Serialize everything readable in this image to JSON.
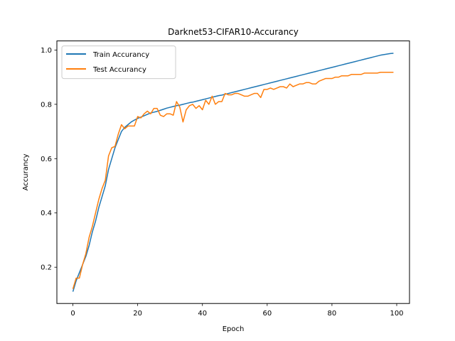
{
  "chart_data": {
    "type": "line",
    "title": "Darknet53-CIFAR10-Accurancy",
    "xlabel": "Epoch",
    "ylabel": "Accurancy",
    "xlim": [
      -4.95,
      103.95
    ],
    "ylim": [
      0.0665,
      1.0335
    ],
    "xticks": [
      0,
      20,
      40,
      60,
      80,
      100
    ],
    "yticks": [
      0.2,
      0.4,
      0.6,
      0.8,
      1.0
    ],
    "legend": "top-left",
    "grid": false,
    "series": [
      {
        "name": "Train Accurancy",
        "color": "#1f77b4",
        "values": [
          0.11,
          0.15,
          0.18,
          0.21,
          0.24,
          0.28,
          0.33,
          0.37,
          0.42,
          0.46,
          0.5,
          0.56,
          0.6,
          0.64,
          0.67,
          0.7,
          0.715,
          0.725,
          0.735,
          0.742,
          0.748,
          0.753,
          0.758,
          0.763,
          0.768,
          0.771,
          0.774,
          0.778,
          0.782,
          0.786,
          0.789,
          0.792,
          0.795,
          0.797,
          0.8,
          0.803,
          0.806,
          0.808,
          0.811,
          0.814,
          0.817,
          0.82,
          0.823,
          0.826,
          0.829,
          0.832,
          0.834,
          0.837,
          0.84,
          0.843,
          0.846,
          0.849,
          0.852,
          0.855,
          0.858,
          0.861,
          0.864,
          0.867,
          0.87,
          0.873,
          0.876,
          0.879,
          0.882,
          0.885,
          0.888,
          0.891,
          0.894,
          0.897,
          0.9,
          0.903,
          0.906,
          0.909,
          0.912,
          0.915,
          0.918,
          0.921,
          0.924,
          0.927,
          0.93,
          0.933,
          0.936,
          0.939,
          0.942,
          0.945,
          0.948,
          0.951,
          0.954,
          0.957,
          0.96,
          0.963,
          0.966,
          0.969,
          0.972,
          0.975,
          0.978,
          0.981,
          0.983,
          0.985,
          0.987,
          0.988
        ]
      },
      {
        "name": "Test Accurancy",
        "color": "#ff7f0e",
        "values": [
          0.12,
          0.16,
          0.16,
          0.21,
          0.25,
          0.31,
          0.35,
          0.4,
          0.45,
          0.49,
          0.52,
          0.61,
          0.64,
          0.645,
          0.69,
          0.725,
          0.71,
          0.72,
          0.72,
          0.72,
          0.755,
          0.75,
          0.765,
          0.775,
          0.765,
          0.785,
          0.785,
          0.76,
          0.755,
          0.765,
          0.765,
          0.76,
          0.81,
          0.79,
          0.735,
          0.78,
          0.795,
          0.8,
          0.785,
          0.795,
          0.78,
          0.815,
          0.8,
          0.83,
          0.8,
          0.81,
          0.81,
          0.84,
          0.835,
          0.835,
          0.84,
          0.84,
          0.835,
          0.83,
          0.83,
          0.835,
          0.84,
          0.84,
          0.825,
          0.855,
          0.855,
          0.86,
          0.855,
          0.86,
          0.865,
          0.865,
          0.86,
          0.875,
          0.865,
          0.87,
          0.875,
          0.875,
          0.88,
          0.88,
          0.875,
          0.875,
          0.885,
          0.89,
          0.895,
          0.895,
          0.895,
          0.9,
          0.9,
          0.905,
          0.905,
          0.905,
          0.91,
          0.91,
          0.91,
          0.91,
          0.915,
          0.915,
          0.915,
          0.915,
          0.915,
          0.918,
          0.918,
          0.918,
          0.918,
          0.918
        ]
      }
    ]
  }
}
